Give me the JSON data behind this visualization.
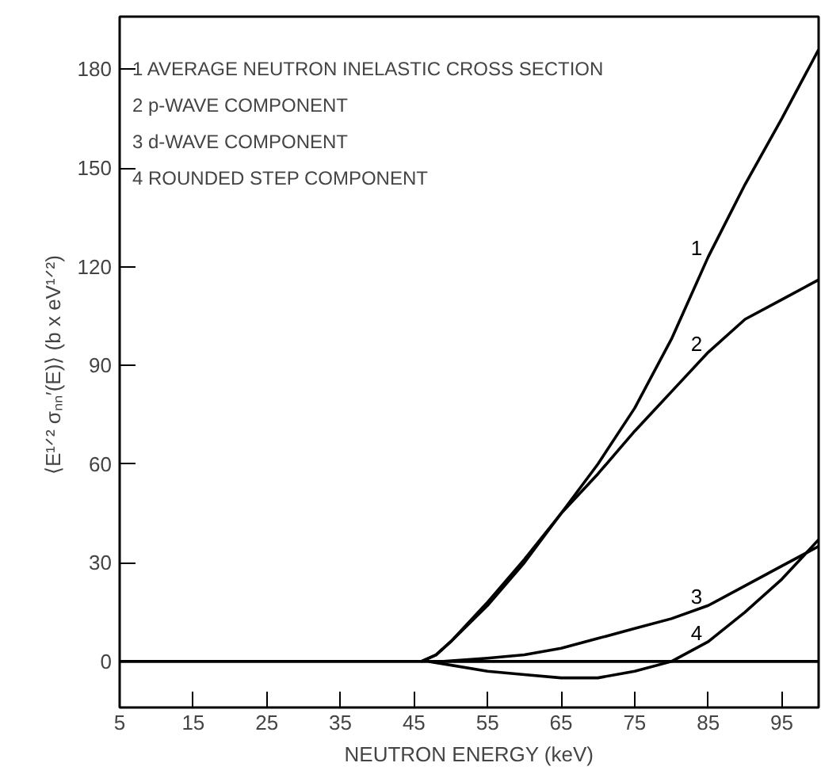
{
  "chart_data": {
    "type": "line",
    "xlabel": "NEUTRON ENERGY (keV)",
    "ylabel": "⟨E¹ᐟ² σₙₙ′(E)⟩  (b x eV¹ᐟ²)",
    "xlim": [
      5,
      100
    ],
    "ylim": [
      -14,
      196
    ],
    "xticks": [
      5,
      15,
      25,
      35,
      45,
      55,
      65,
      75,
      85,
      95
    ],
    "yticks": [
      0,
      30,
      60,
      90,
      120,
      150,
      180
    ],
    "grid": false,
    "marker": "none",
    "line_style": "solid",
    "annotations": [
      "1  AVERAGE NEUTRON INELASTIC CROSS SECTION",
      "2  p-WAVE COMPONENT",
      "3  d-WAVE COMPONENT",
      "4  ROUNDED STEP COMPONENT"
    ],
    "series": [
      {
        "color": "#000000",
        "x": [
          5,
          100
        ],
        "values": [
          0,
          0
        ]
      },
      {
        "name": "1",
        "color": "#000000",
        "x": [
          46,
          48,
          50,
          55,
          60,
          65,
          70,
          75,
          80,
          85,
          90,
          95,
          100
        ],
        "values": [
          0,
          2,
          6,
          18,
          31,
          45,
          60,
          77,
          98,
          123,
          145,
          165,
          186
        ]
      },
      {
        "name": "2",
        "color": "#000000",
        "x": [
          46,
          48,
          50,
          55,
          60,
          65,
          70,
          75,
          80,
          85,
          90,
          95,
          100
        ],
        "values": [
          0,
          2,
          6,
          17,
          30,
          45,
          57,
          70,
          82,
          94,
          104,
          110,
          116
        ]
      },
      {
        "name": "3",
        "color": "#000000",
        "x": [
          49,
          55,
          60,
          65,
          70,
          75,
          80,
          85,
          90,
          95,
          100
        ],
        "values": [
          0,
          1,
          2,
          4,
          7,
          10,
          13,
          17,
          23,
          29,
          35
        ]
      },
      {
        "name": "4",
        "color": "#000000",
        "x": [
          47,
          55,
          60,
          65,
          70,
          75,
          80,
          85,
          90,
          95,
          100
        ],
        "values": [
          0,
          -3,
          -4,
          -5,
          -5,
          -3,
          0,
          6,
          15,
          25,
          37
        ]
      }
    ]
  }
}
